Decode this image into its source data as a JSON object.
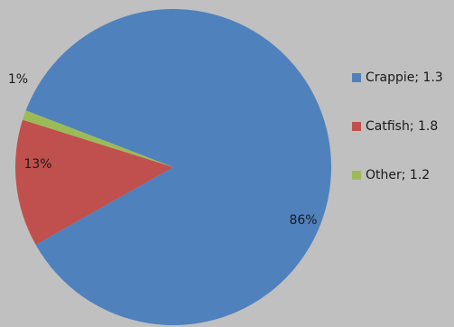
{
  "chart_data": {
    "type": "pie",
    "title": "",
    "slices": [
      {
        "label": "Crappie",
        "legend_text": "Crappie; 1.3",
        "value": 86,
        "data_label": "86%",
        "color": "#4f81bd"
      },
      {
        "label": "Catfish",
        "legend_text": "Catfish; 1.8",
        "value": 13,
        "data_label": "13%",
        "color": "#c0504d"
      },
      {
        "label": "Other",
        "legend_text": "Other; 1.2",
        "value": 1,
        "data_label": "1%",
        "color": "#9bbb59"
      }
    ],
    "legend_position": "right"
  }
}
